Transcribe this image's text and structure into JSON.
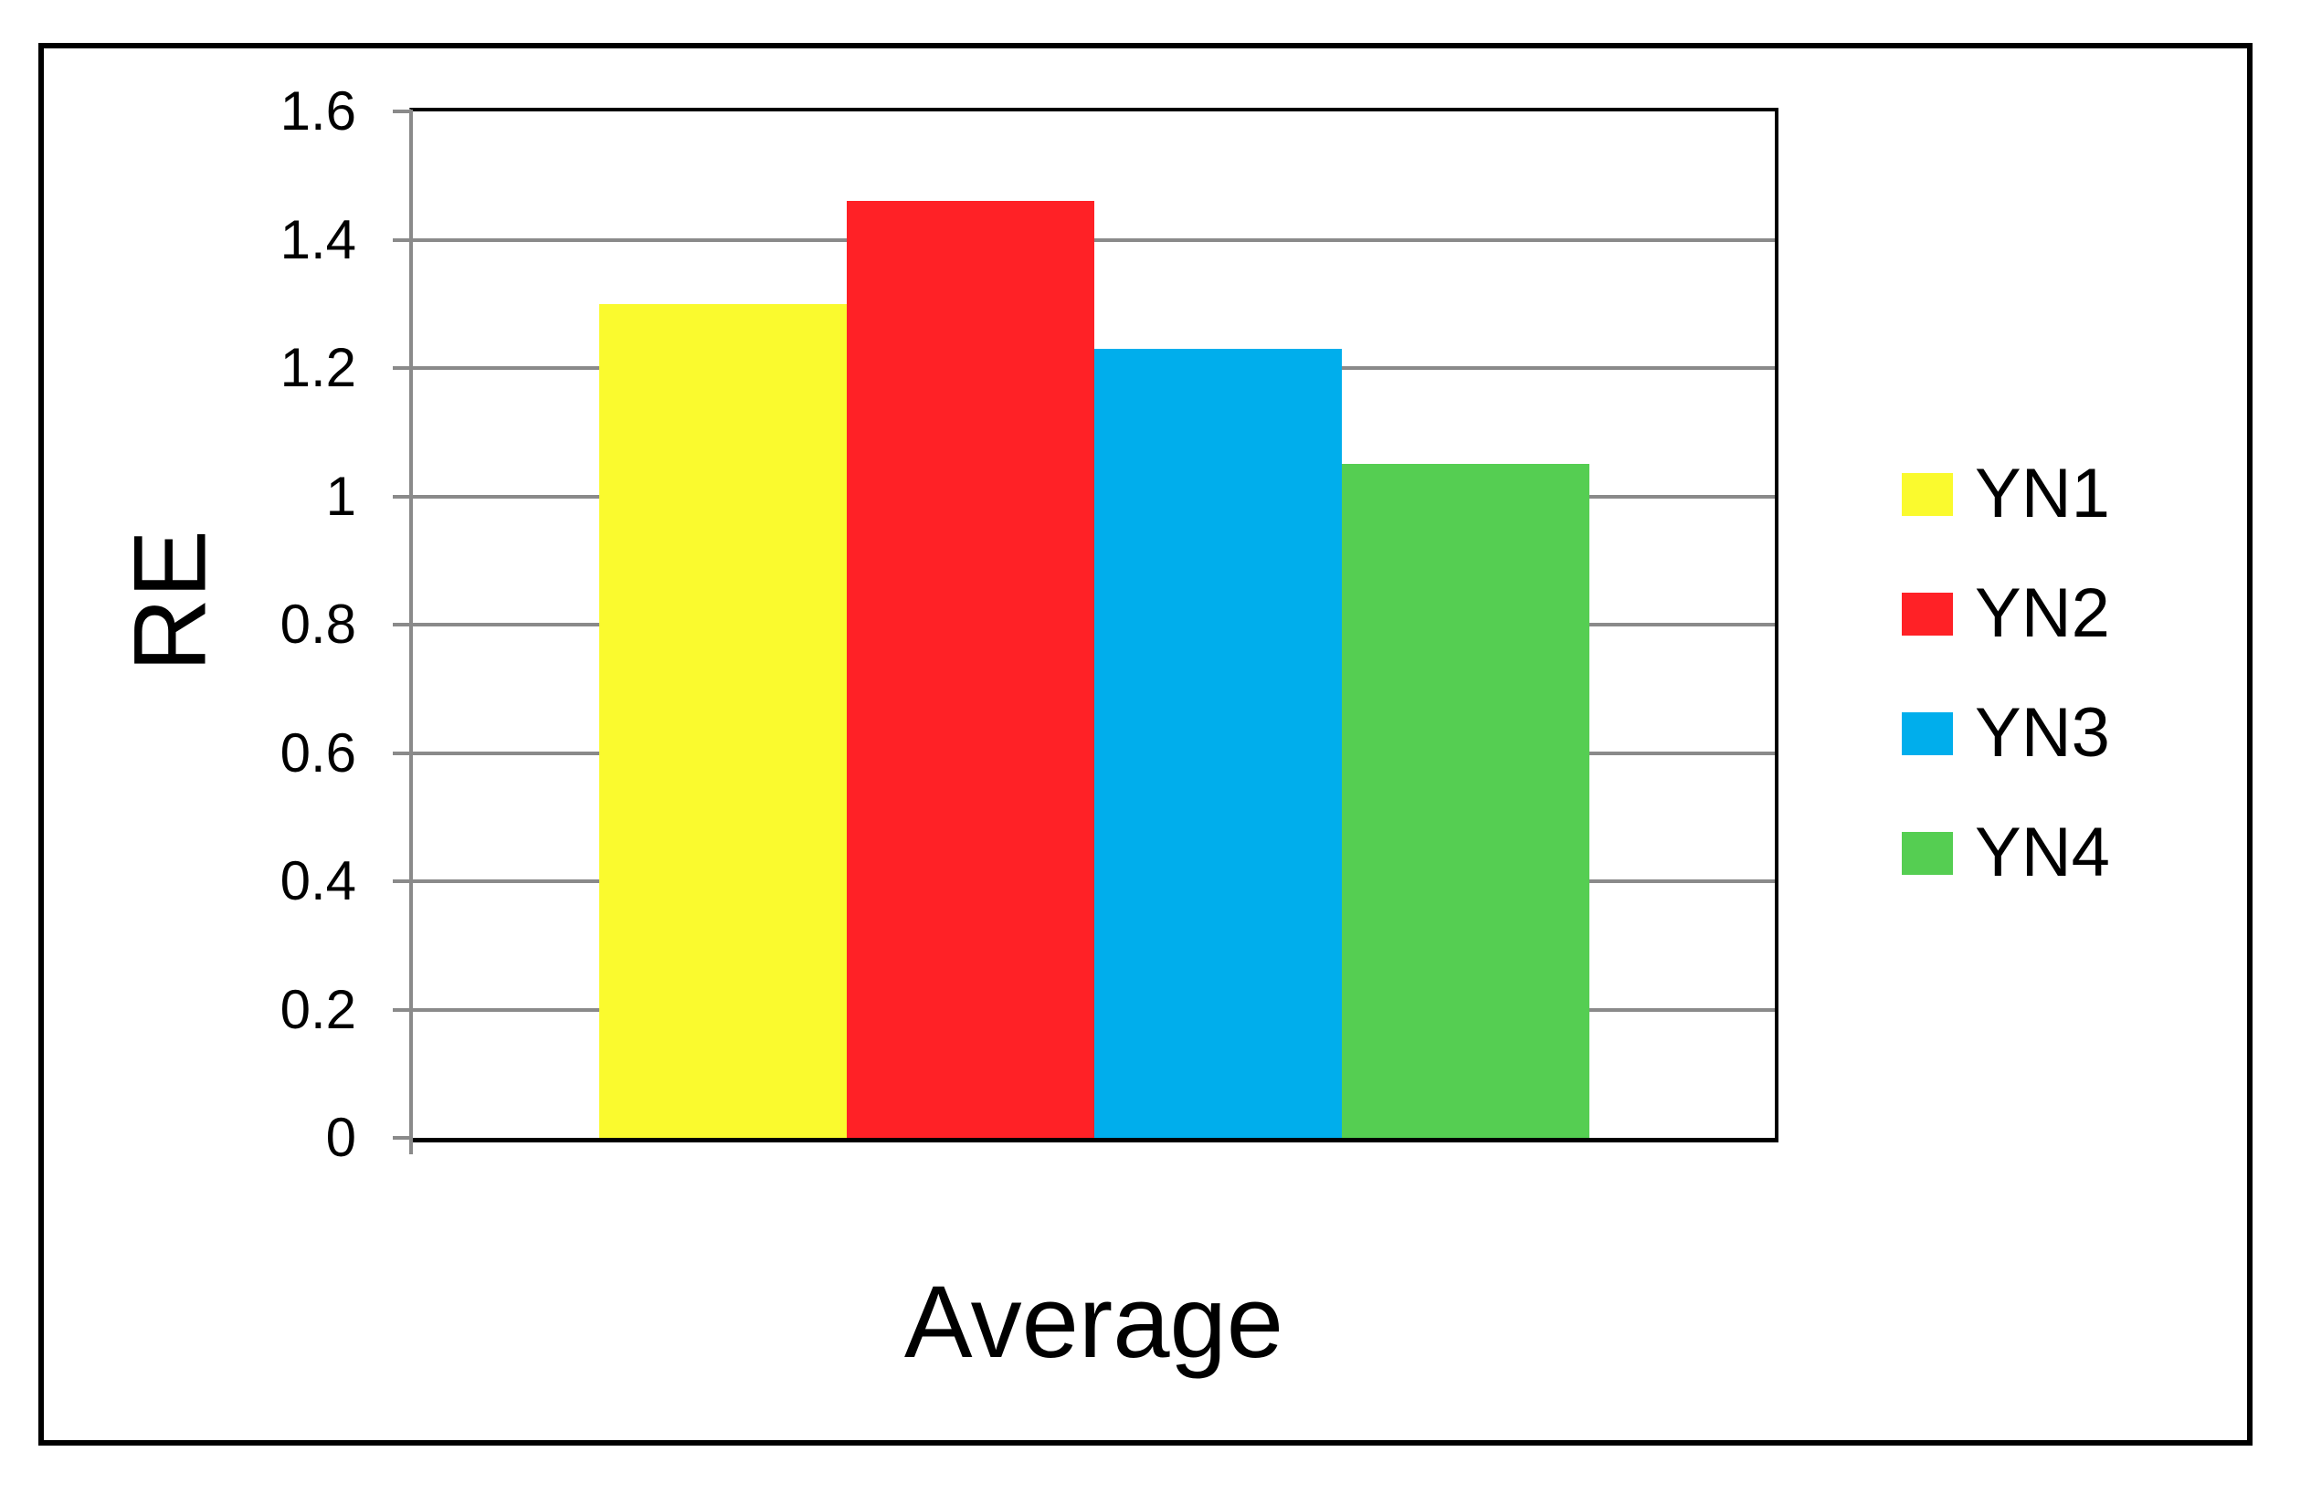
{
  "chart_data": {
    "type": "bar",
    "categories": [
      "Average"
    ],
    "series": [
      {
        "name": "YN1",
        "values": [
          1.3
        ],
        "color": "#fafa2e"
      },
      {
        "name": "YN2",
        "values": [
          1.46
        ],
        "color": "#ff2126"
      },
      {
        "name": "YN3",
        "values": [
          1.23
        ],
        "color": "#00aeec"
      },
      {
        "name": "YN4",
        "values": [
          1.05
        ],
        "color": "#55ce52"
      }
    ],
    "title": "",
    "xlabel": "Average",
    "ylabel": "RE",
    "ylim": [
      0,
      1.6
    ],
    "ytick_step": 0.2,
    "ytick_labels": [
      "0",
      "0.2",
      "0.4",
      "0.6",
      "0.8",
      "1",
      "1.2",
      "1.4",
      "1.6"
    ],
    "grid": true,
    "legend_position": "right",
    "colors": {
      "gridline": "#8a8a8a",
      "axis_line": "#8a8a8a",
      "plot_border": "#000000",
      "text": "#000000"
    }
  }
}
